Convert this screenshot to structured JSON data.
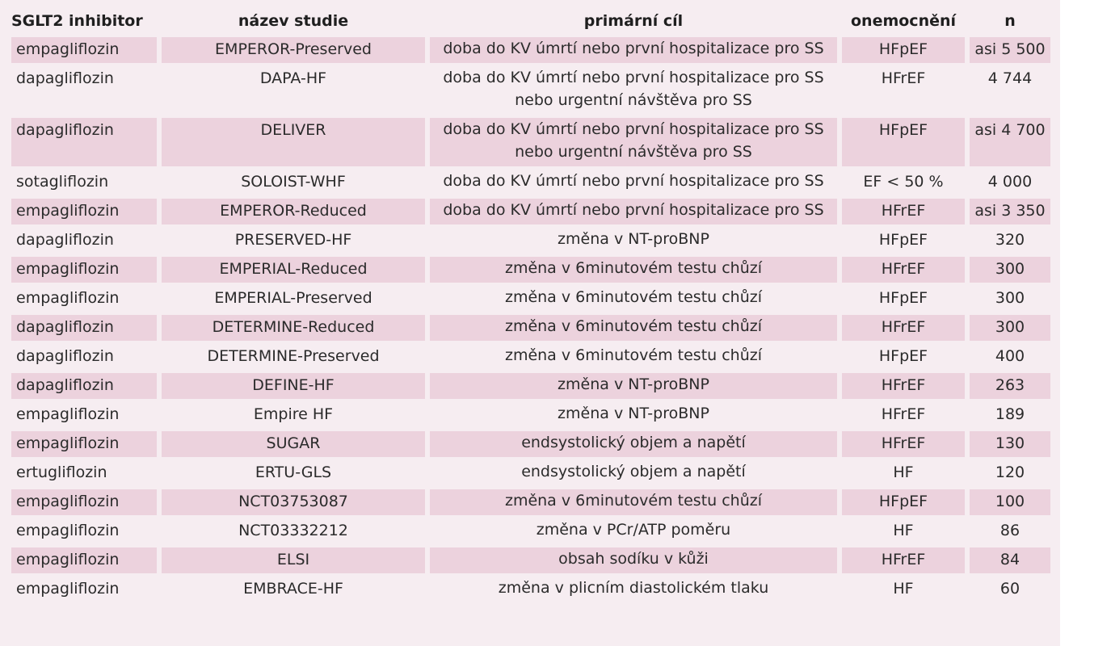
{
  "table": {
    "headers": [
      "SGLT2 inhibitor",
      "název studie",
      "primární cíl",
      "onemocnění",
      "n"
    ],
    "rows": [
      {
        "inhibitor": "empagliflozin",
        "study": "EMPEROR-Preserved",
        "goal": [
          "doba do KV úmrtí nebo první hospitalizace pro SS"
        ],
        "disease": "HFpEF",
        "n": "asi 5 500"
      },
      {
        "inhibitor": "dapagliflozin",
        "study": "DAPA-HF",
        "goal": [
          "doba do KV úmrtí nebo první hospitalizace pro SS",
          "nebo urgentní návštěva pro SS"
        ],
        "disease": "HFrEF",
        "n": "4 744"
      },
      {
        "inhibitor": "dapagliflozin",
        "study": "DELIVER",
        "goal": [
          "doba do KV úmrtí nebo první hospitalizace pro SS",
          "nebo urgentní návštěva pro SS"
        ],
        "disease": "HFpEF",
        "n": "asi 4 700"
      },
      {
        "inhibitor": "sotagliflozin",
        "study": "SOLOIST-WHF",
        "goal": [
          "doba do KV úmrtí nebo první hospitalizace pro SS"
        ],
        "disease": "EF < 50 %",
        "n": "4 000"
      },
      {
        "inhibitor": "empagliflozin",
        "study": "EMPEROR-Reduced",
        "goal": [
          "doba do KV úmrtí nebo první hospitalizace pro SS"
        ],
        "disease": "HFrEF",
        "n": "asi 3 350"
      },
      {
        "inhibitor": "dapagliflozin",
        "study": "PRESERVED-HF",
        "goal": [
          "změna v NT-proBNP"
        ],
        "disease": "HFpEF",
        "n": "320"
      },
      {
        "inhibitor": "empagliflozin",
        "study": "EMPERIAL-Reduced",
        "goal": [
          "změna v 6minutovém testu chůzí"
        ],
        "disease": "HFrEF",
        "n": "300"
      },
      {
        "inhibitor": "empagliflozin",
        "study": "EMPERIAL-Preserved",
        "goal": [
          "změna v 6minutovém testu chůzí"
        ],
        "disease": "HFpEF",
        "n": "300"
      },
      {
        "inhibitor": "dapagliflozin",
        "study": "DETERMINE-Reduced",
        "goal": [
          "změna v 6minutovém testu chůzí"
        ],
        "disease": "HFrEF",
        "n": "300"
      },
      {
        "inhibitor": "dapagliflozin",
        "study": "DETERMINE-Preserved",
        "goal": [
          "změna v 6minutovém testu chůzí"
        ],
        "disease": "HFpEF",
        "n": "400"
      },
      {
        "inhibitor": "dapagliflozin",
        "study": "DEFINE-HF",
        "goal": [
          "změna v NT-proBNP"
        ],
        "disease": "HFrEF",
        "n": "263"
      },
      {
        "inhibitor": "empagliflozin",
        "study": "Empire HF",
        "goal": [
          "změna v NT-proBNP"
        ],
        "disease": "HFrEF",
        "n": "189"
      },
      {
        "inhibitor": "empagliflozin",
        "study": "SUGAR",
        "goal": [
          "endsystolický objem a napětí"
        ],
        "disease": "HFrEF",
        "n": "130"
      },
      {
        "inhibitor": "ertugliflozin",
        "study": "ERTU-GLS",
        "goal": [
          "endsystolický objem a napětí"
        ],
        "disease": "HF",
        "n": "120"
      },
      {
        "inhibitor": "empagliflozin",
        "study": "NCT03753087",
        "goal": [
          "změna v 6minutovém testu chůzí"
        ],
        "disease": "HFpEF",
        "n": "100"
      },
      {
        "inhibitor": "empagliflozin",
        "study": "NCT03332212",
        "goal": [
          "změna v PCr/ATP poměru"
        ],
        "disease": "HF",
        "n": "86"
      },
      {
        "inhibitor": "empagliflozin",
        "study": "ELSI",
        "goal": [
          "obsah sodíku v kůži"
        ],
        "disease": "HFrEF",
        "n": "84"
      },
      {
        "inhibitor": "empagliflozin",
        "study": "EMBRACE-HF",
        "goal": [
          "změna v plicním diastolickém tlaku"
        ],
        "disease": "HF",
        "n": "60"
      }
    ]
  },
  "colors": {
    "panel_background": "#f6edf1",
    "shaded_cell": "#ecd2dd",
    "text": "#2b2b2b"
  }
}
